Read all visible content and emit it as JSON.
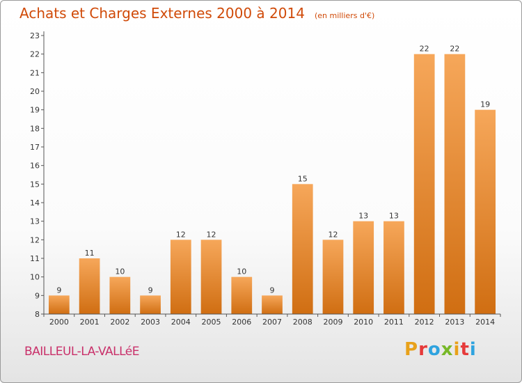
{
  "header": {
    "title": "Achats et Charges Externes 2000 à 2014",
    "subtitle": "(en milliers d'€)"
  },
  "footer": {
    "city": "BAILLEUL-LA-VALLéE",
    "brand": {
      "letters": [
        "P",
        "r",
        "o",
        "x",
        "i",
        "t",
        "i"
      ],
      "colors": [
        "#e8a11a",
        "#e63a3a",
        "#2fa3df",
        "#77b828",
        "#e8a11a",
        "#e63a3a",
        "#2fa3df"
      ]
    }
  },
  "colors": {
    "bar_light": "#f6a75a",
    "bar_dark": "#d06e12",
    "axis": "#555555",
    "grid": "#cccccc"
  },
  "chart_data": {
    "type": "bar",
    "title": "Achats et Charges Externes 2000 à 2014",
    "subtitle": "(en milliers d'€)",
    "categories": [
      "2000",
      "2001",
      "2002",
      "2003",
      "2004",
      "2005",
      "2006",
      "2007",
      "2008",
      "2009",
      "2010",
      "2011",
      "2012",
      "2013",
      "2014"
    ],
    "values": [
      9,
      11,
      10,
      9,
      12,
      12,
      10,
      9,
      15,
      12,
      13,
      13,
      22,
      22,
      19
    ],
    "ylim": [
      8,
      23
    ],
    "yticks": [
      8,
      9,
      10,
      11,
      12,
      13,
      14,
      15,
      16,
      17,
      18,
      19,
      20,
      21,
      22,
      23
    ],
    "grid": false,
    "legend": "none"
  }
}
